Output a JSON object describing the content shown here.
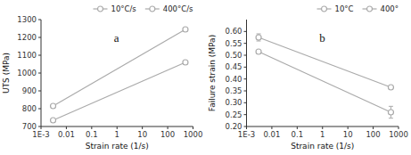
{
  "chart_data": [
    {
      "type": "line",
      "x": [
        0.003,
        500
      ],
      "series": [
        {
          "name": "10°C/s",
          "color": "#aaaaaa",
          "marker": "circle",
          "line_style": "solid",
          "values": [
            735,
            1060
          ]
        },
        {
          "name": "400°C/s",
          "color": "#aaaaaa",
          "marker": "circle",
          "line_style": "solid",
          "values": [
            815,
            1245
          ]
        }
      ],
      "x_label": "Strain rate (1/s)",
      "y_label": "UTS (MPa)",
      "annotations": [
        "a"
      ],
      "log": "x",
      "xlim": [
        0.001,
        1000
      ],
      "xticks": [
        {
          "value": 0.001,
          "label": "1E-3"
        },
        0.01,
        0.1,
        1,
        10,
        100,
        1000
      ],
      "ylim": [
        700,
        1300
      ],
      "yticks": [
        700,
        800,
        900,
        1000,
        1100,
        1200,
        1300
      ],
      "grid": false,
      "legend": "upper right"
    },
    {
      "type": "line",
      "x": [
        0.003,
        500
      ],
      "series": [
        {
          "name": "10°C",
          "color": "#aaaaaa",
          "marker": "circle",
          "line_style": "solid",
          "values": [
            0.515,
            0.26
          ],
          "error_low": [
            0.0,
            0.025
          ],
          "error_high": [
            0.0,
            0.025
          ]
        },
        {
          "name": "400°",
          "color": "#aaaaaa",
          "marker": "circle",
          "line_style": "solid",
          "values": [
            0.575,
            0.365
          ],
          "error_low": [
            0.015,
            0.0
          ],
          "error_high": [
            0.015,
            0.0
          ]
        }
      ],
      "x_label": "Strain rate (1/s)",
      "y_label": "Failure strain (MPa)",
      "annotations": [
        "b"
      ],
      "log": "x",
      "xlim": [
        0.001,
        1000
      ],
      "xticks": [
        {
          "value": 0.001,
          "label": "1E-3"
        },
        0.01,
        0.1,
        1,
        10,
        100,
        1000
      ],
      "ylim": [
        0.2,
        0.65
      ],
      "yticks": [
        {
          "value": 0.2,
          "label": "0.20"
        },
        0.25,
        {
          "value": 0.3,
          "label": "0.30"
        },
        0.35,
        {
          "value": 0.4,
          "label": "0.40"
        },
        0.45,
        {
          "value": 0.5,
          "label": "0.50"
        },
        0.55,
        {
          "value": 0.6,
          "label": "0.60"
        }
      ],
      "grid": false,
      "legend": "upper right"
    }
  ]
}
